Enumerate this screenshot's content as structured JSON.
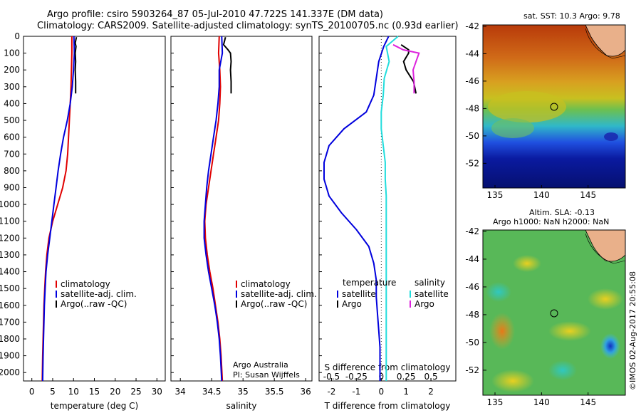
{
  "header": {
    "title_line1": "Argo profile: csiro 5903264_87 05-Jul-2010 47.722S 141.337E (DM data)",
    "title_line2": "Climatology: CARS2009. Satellite-adjusted climatology: synTS_20100705.nc (0.93d earlier)"
  },
  "colors": {
    "climatology": "#e00000",
    "satellite": "#0000dd",
    "argo": "#000000",
    "salinity_satellite": "#22dddd",
    "salinity_argo": "#dd22dd"
  },
  "depth_ticks": [
    0,
    100,
    200,
    300,
    400,
    500,
    600,
    700,
    800,
    900,
    1000,
    1100,
    1200,
    1300,
    1400,
    1500,
    1600,
    1700,
    1800,
    1900,
    2000
  ],
  "chart_data": [
    {
      "type": "line",
      "xlabel": "temperature (deg C)",
      "xticks": [
        0,
        5,
        10,
        15,
        20,
        25,
        30
      ],
      "xlim": [
        -2,
        32
      ],
      "ylim": [
        2050,
        0
      ],
      "legend": [
        "climatology",
        "satellite-adj. clim.",
        "Argo(..raw -QC)"
      ],
      "series": [
        {
          "name": "climatology",
          "x": [
            9.6,
            9.6,
            9.5,
            9.4,
            9.2,
            9.0,
            8.8,
            8.6,
            8.2,
            7.4,
            6.2,
            5.0,
            4.1,
            3.6,
            3.3,
            3.1,
            2.9,
            2.8,
            2.7,
            2.6,
            2.5
          ],
          "y": [
            0,
            100,
            200,
            300,
            400,
            500,
            600,
            700,
            800,
            900,
            1000,
            1100,
            1200,
            1300,
            1400,
            1500,
            1600,
            1700,
            1800,
            1900,
            2050
          ]
        },
        {
          "name": "satellite-adj. clim.",
          "x": [
            10.1,
            10.2,
            10.0,
            9.7,
            9.2,
            8.5,
            7.6,
            6.9,
            6.3,
            5.8,
            5.3,
            4.8,
            4.3,
            3.8,
            3.4,
            3.2,
            3.0,
            2.9,
            2.8,
            2.7,
            2.6
          ],
          "y": [
            0,
            100,
            200,
            300,
            400,
            500,
            600,
            700,
            800,
            900,
            1000,
            1100,
            1200,
            1300,
            1400,
            1500,
            1600,
            1700,
            1800,
            1900,
            2050
          ]
        },
        {
          "name": "Argo(..raw -QC)",
          "x": [
            10.7,
            10.4,
            10.6,
            10.4,
            10.5,
            10.4,
            10.5,
            10.5
          ],
          "y": [
            5,
            40,
            60,
            100,
            150,
            200,
            270,
            340
          ]
        }
      ]
    },
    {
      "type": "line",
      "xlabel": "salinity",
      "xticks": [
        34,
        34.5,
        35,
        35.5,
        36
      ],
      "xlim": [
        33.85,
        36.1
      ],
      "ylim": [
        2050,
        0
      ],
      "legend": [
        "climatology",
        "satellite-adj. clim.",
        "Argo(..raw -QC)"
      ],
      "annotation": [
        "Argo Australia",
        "PI: Susan Wijffels"
      ],
      "series": [
        {
          "name": "climatology",
          "x": [
            34.62,
            34.61,
            34.63,
            34.64,
            34.63,
            34.61,
            34.57,
            34.53,
            34.49,
            34.45,
            34.41,
            34.39,
            34.4,
            34.43,
            34.47,
            34.52,
            34.56,
            34.6,
            34.63,
            34.65,
            34.67
          ],
          "y": [
            0,
            100,
            200,
            300,
            400,
            500,
            600,
            700,
            800,
            900,
            1000,
            1100,
            1200,
            1300,
            1400,
            1500,
            1600,
            1700,
            1800,
            1900,
            2050
          ]
        },
        {
          "name": "satellite-adj. clim.",
          "x": [
            34.66,
            34.67,
            34.62,
            34.62,
            34.6,
            34.57,
            34.53,
            34.49,
            34.45,
            34.42,
            34.4,
            34.38,
            34.38,
            34.41,
            34.45,
            34.5,
            34.55,
            34.59,
            34.62,
            34.64,
            34.66
          ],
          "y": [
            0,
            100,
            200,
            300,
            400,
            500,
            600,
            700,
            800,
            900,
            1000,
            1100,
            1200,
            1300,
            1400,
            1500,
            1600,
            1700,
            1800,
            1900,
            2050
          ]
        },
        {
          "name": "Argo(..raw -QC)",
          "x": [
            34.72,
            34.69,
            34.76,
            34.8,
            34.81,
            34.8,
            34.81,
            34.81
          ],
          "y": [
            5,
            50,
            80,
            100,
            150,
            200,
            270,
            340
          ]
        }
      ]
    },
    {
      "type": "line",
      "xlabel": "T difference from climatology",
      "xlabel_top": "S difference from climatology",
      "xticks": [
        -2,
        -1,
        0,
        1,
        2
      ],
      "xticks_top": [
        -0.5,
        -0.25,
        0,
        0.25,
        0.5
      ],
      "xlim": [
        -2.5,
        3.0
      ],
      "ylim": [
        2050,
        0
      ],
      "legend_headers": [
        "temperature",
        "salinity"
      ],
      "legend": [
        "satellite",
        "Argo",
        "satellite",
        "Argo"
      ],
      "series": [
        {
          "name": "satellite",
          "quantity": "temperature",
          "x": [
            0.3,
            0.1,
            -0.1,
            -0.2,
            -0.3,
            -0.6,
            -1.5,
            -2.1,
            -2.3,
            -2.3,
            -2.1,
            -1.6,
            -1.0,
            -0.5,
            -0.3,
            -0.2,
            -0.2,
            -0.15,
            -0.1,
            -0.05,
            -0.05
          ],
          "y": [
            0,
            60,
            150,
            250,
            350,
            450,
            550,
            650,
            750,
            850,
            950,
            1050,
            1150,
            1250,
            1350,
            1450,
            1550,
            1650,
            1750,
            1850,
            2050
          ]
        },
        {
          "name": "Argo",
          "quantity": "temperature",
          "x": [
            0.8,
            1.1,
            1.1,
            0.9,
            1.0,
            1.3,
            1.4
          ],
          "y": [
            50,
            80,
            100,
            150,
            200,
            270,
            340
          ]
        },
        {
          "name": "satellite",
          "quantity": "salinity",
          "x": [
            0.17,
            0.05,
            0.08,
            0.03,
            0.02,
            0.0,
            0.0,
            0.02,
            0.04,
            0.04,
            0.05,
            0.05,
            0.05,
            0.05,
            0.05,
            0.05,
            0.05,
            0.05,
            0.05,
            0.05
          ],
          "y": [
            0,
            60,
            150,
            250,
            350,
            450,
            550,
            650,
            750,
            850,
            950,
            1050,
            1250,
            1400,
            1550,
            1650,
            1750,
            1850,
            1950,
            2050
          ]
        },
        {
          "name": "Argo",
          "quantity": "salinity",
          "x": [
            0.12,
            0.22,
            0.38,
            0.35,
            0.32,
            0.33,
            0.33
          ],
          "y": [
            50,
            80,
            100,
            150,
            200,
            270,
            340
          ]
        }
      ]
    }
  ],
  "maps": {
    "top_label": "sat. SST: 10.3 Argo: 9.78",
    "bottom_label_line1": "Altim. SLA: -0.13",
    "bottom_label_line2": "Argo h1000: NaN h2000: NaN",
    "yticks": [
      "-42",
      "-44",
      "-46",
      "-48",
      "-50",
      "-52"
    ],
    "xticks": [
      "135",
      "140",
      "145"
    ]
  },
  "credit": "©IMOS 02-Aug-2017 20:55:08"
}
